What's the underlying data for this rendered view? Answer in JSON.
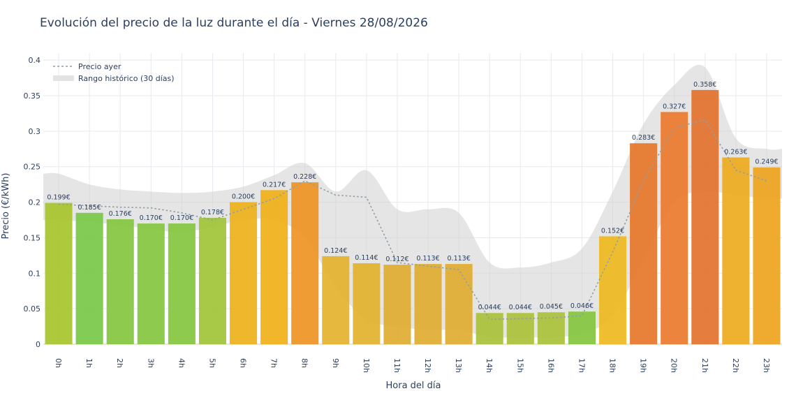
{
  "chart_data": {
    "type": "bar",
    "title": "Evolución del precio de la luz durante el día - Viernes 28/08/2026",
    "xlabel": "Hora del día",
    "ylabel": "Precio (€/kWh)",
    "ylim": [
      0,
      0.41
    ],
    "yticks": [
      "0",
      "0.05",
      "0.1",
      "0.15",
      "0.2",
      "0.25",
      "0.3",
      "0.35",
      "0.4"
    ],
    "categories": [
      "0h",
      "1h",
      "2h",
      "3h",
      "4h",
      "5h",
      "6h",
      "7h",
      "8h",
      "9h",
      "10h",
      "11h",
      "12h",
      "13h",
      "14h",
      "15h",
      "16h",
      "17h",
      "18h",
      "19h",
      "20h",
      "21h",
      "22h",
      "23h"
    ],
    "values": [
      0.199,
      0.185,
      0.176,
      0.17,
      0.17,
      0.178,
      0.2,
      0.217,
      0.228,
      0.124,
      0.114,
      0.112,
      0.113,
      0.113,
      0.044,
      0.044,
      0.045,
      0.046,
      0.152,
      0.283,
      0.327,
      0.358,
      0.263,
      0.249
    ],
    "value_labels": [
      "0.199€",
      "0.185€",
      "0.176€",
      "0.170€",
      "0.170€",
      "0.178€",
      "0.200€",
      "0.217€",
      "0.228€",
      "0.124€",
      "0.114€",
      "0.112€",
      "0.113€",
      "0.113€",
      "0.044€",
      "0.044€",
      "0.045€",
      "0.046€",
      "0.152€",
      "0.283€",
      "0.327€",
      "0.358€",
      "0.263€",
      "0.249€"
    ],
    "bar_colors": [
      "#a8c42c",
      "#78c848",
      "#84c63f",
      "#84c63f",
      "#84c63f",
      "#a0c437",
      "#eeb119",
      "#f0b018",
      "#ee9424",
      "#e4b22e",
      "#e2b12c",
      "#e0ad30",
      "#e0ad30",
      "#e0ad30",
      "#a9c13a",
      "#abc13a",
      "#aac23a",
      "#84c63f",
      "#eeb820",
      "#e6772a",
      "#ec7a2c",
      "#e2722c",
      "#eeaa1e",
      "#eea41e"
    ],
    "series": [
      {
        "name": "Precio ayer",
        "style": "dotted",
        "color": "#8f9fa6",
        "values": [
          0.197,
          0.195,
          0.193,
          0.192,
          0.185,
          0.175,
          0.19,
          0.205,
          0.23,
          0.21,
          0.207,
          0.115,
          0.11,
          0.105,
          0.035,
          0.036,
          0.037,
          0.04,
          0.13,
          0.23,
          0.305,
          0.316,
          0.245,
          0.23
        ]
      },
      {
        "name": "Rango histórico (30 días)",
        "style": "band",
        "color": "#cfcfcf",
        "lower": [
          0.175,
          0.172,
          0.168,
          0.162,
          0.158,
          0.165,
          0.175,
          0.175,
          0.15,
          0.08,
          0.035,
          0.025,
          0.02,
          0.02,
          0.01,
          0.01,
          0.01,
          0.015,
          0.04,
          0.12,
          0.2,
          0.215,
          0.21,
          0.205
        ],
        "upper": [
          0.24,
          0.225,
          0.218,
          0.215,
          0.213,
          0.215,
          0.222,
          0.238,
          0.255,
          0.215,
          0.245,
          0.19,
          0.19,
          0.185,
          0.115,
          0.108,
          0.115,
          0.135,
          0.215,
          0.31,
          0.365,
          0.39,
          0.29,
          0.275
        ]
      }
    ],
    "grid": true,
    "legend_position": "top-left"
  }
}
